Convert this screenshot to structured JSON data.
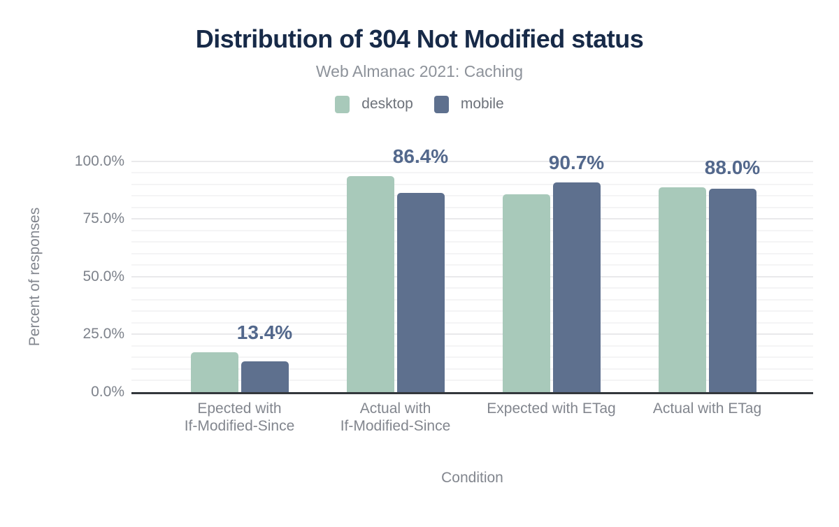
{
  "header": {
    "title": "Distribution of 304 Not Modified status",
    "subtitle": "Web Almanac 2021: Caching"
  },
  "colors": {
    "desktop_bar": "#a8c9ba",
    "mobile_bar": "#5e708e",
    "title_text": "#172a48",
    "subtitle_text": "#8d929a",
    "value_label_text": "#53688c",
    "axis_text": "#82868e",
    "tick_text": "#7d828b",
    "legend_text": "#6d727a",
    "grid_minor": "#f4f4f5",
    "grid_major": "#e9e9eb",
    "axis_line": "#33373c",
    "background": "#ffffff"
  },
  "chart_data": {
    "type": "bar",
    "title": "Distribution of 304 Not Modified status",
    "subtitle": "Web Almanac 2021: Caching",
    "xlabel": "Condition",
    "ylabel": "Percent of responses",
    "ylim": [
      0,
      100
    ],
    "grid": {
      "minor_step_percent": 5,
      "major_step_percent": 25,
      "grid_on": true
    },
    "legend_position": "top",
    "yticks": [
      {
        "value": 0,
        "label": "0.0%"
      },
      {
        "value": 25,
        "label": "25.0%"
      },
      {
        "value": 50,
        "label": "50.0%"
      },
      {
        "value": 75,
        "label": "75.0%"
      },
      {
        "value": 100,
        "label": "100.0%"
      }
    ],
    "categories": [
      {
        "label": "Epected with If-Modified-Since",
        "lines": [
          "Epected with",
          "If-Modified-Since"
        ]
      },
      {
        "label": "Actual with If-Modified-Since",
        "lines": [
          "Actual with",
          "If-Modified-Since"
        ]
      },
      {
        "label": "Expected with ETag",
        "lines": [
          "Expected with ETag"
        ]
      },
      {
        "label": "Actual with ETag",
        "lines": [
          "Actual with ETag"
        ]
      }
    ],
    "series": [
      {
        "name": "desktop",
        "color": "#a8c9ba",
        "values": [
          17.3,
          93.7,
          85.7,
          88.6
        ]
      },
      {
        "name": "mobile",
        "color": "#5e708e",
        "values": [
          13.4,
          86.4,
          90.7,
          88.0
        ]
      }
    ],
    "bar_labels": {
      "labeled_series": "mobile",
      "values": [
        "13.4%",
        "86.4%",
        "90.7%",
        "88.0%"
      ]
    }
  }
}
